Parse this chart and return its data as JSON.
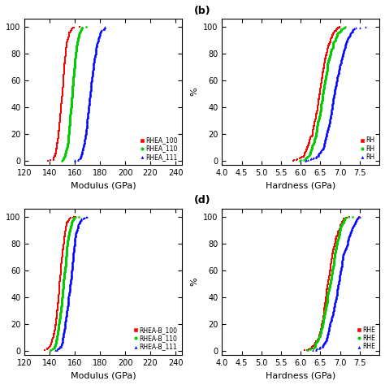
{
  "fig_width": 4.74,
  "fig_height": 4.74,
  "dpi": 100,
  "background_color": "#ffffff",
  "panels": {
    "a": {
      "label": "",
      "xlabel": "Modulus (GPa)",
      "ylabel": "",
      "xlim": [
        120,
        245
      ],
      "ylim": [
        -3,
        106
      ],
      "xticks": [
        120,
        140,
        160,
        180,
        200,
        220,
        240
      ],
      "yticks": [
        0,
        20,
        40,
        60,
        80,
        100
      ],
      "series": [
        {
          "name": "RHEA_100",
          "color": "#ff0000",
          "marker": "s",
          "mean": 150,
          "std": 3.5,
          "n": 300
        },
        {
          "name": "RHEA_110",
          "color": "#00cc00",
          "marker": "o",
          "mean": 158,
          "std": 3.5,
          "n": 300
        },
        {
          "name": "RHEA_111",
          "color": "#0000ff",
          "marker": "^",
          "mean": 172,
          "std": 4.5,
          "n": 300
        }
      ]
    },
    "b": {
      "label": "(b)",
      "xlabel": "Hardness (GPa)",
      "ylabel": "%",
      "xlim": [
        4.0,
        8.0
      ],
      "ylim": [
        -3,
        106
      ],
      "xticks": [
        4.0,
        4.5,
        5.0,
        5.5,
        6.0,
        6.5,
        7.0,
        7.5
      ],
      "yticks": [
        0,
        20,
        40,
        60,
        80,
        100
      ],
      "series": [
        {
          "name": "RH",
          "color": "#ff0000",
          "marker": "s",
          "mean": 6.45,
          "std": 0.22,
          "n": 300
        },
        {
          "name": "RH",
          "color": "#00cc00",
          "marker": "o",
          "mean": 6.55,
          "std": 0.22,
          "n": 300
        },
        {
          "name": "RH",
          "color": "#0000ff",
          "marker": "^",
          "mean": 6.85,
          "std": 0.25,
          "n": 300
        }
      ]
    },
    "c": {
      "label": "",
      "xlabel": "Modulus (GPa)",
      "ylabel": "",
      "xlim": [
        120,
        245
      ],
      "ylim": [
        -3,
        106
      ],
      "xticks": [
        120,
        140,
        160,
        180,
        200,
        220,
        240
      ],
      "yticks": [
        0,
        20,
        40,
        60,
        80,
        100
      ],
      "series": [
        {
          "name": "RHEA-B_100",
          "color": "#ff0000",
          "marker": "s",
          "mean": 148,
          "std": 4,
          "n": 300
        },
        {
          "name": "RHEA-B_110",
          "color": "#00cc00",
          "marker": "o",
          "mean": 151,
          "std": 4,
          "n": 300
        },
        {
          "name": "RHEA-B_111",
          "color": "#0000ff",
          "marker": "^",
          "mean": 156,
          "std": 4.5,
          "n": 300
        }
      ]
    },
    "d": {
      "label": "(d)",
      "xlabel": "Hardness (GPa)",
      "ylabel": "%",
      "xlim": [
        4.0,
        8.0
      ],
      "ylim": [
        -3,
        106
      ],
      "xticks": [
        4.0,
        4.5,
        5.0,
        5.5,
        6.0,
        6.5,
        7.0,
        7.5
      ],
      "yticks": [
        0,
        20,
        40,
        60,
        80,
        100
      ],
      "series": [
        {
          "name": "RHE",
          "color": "#ff0000",
          "marker": "s",
          "mean": 6.7,
          "std": 0.2,
          "n": 300
        },
        {
          "name": "RHE",
          "color": "#00cc00",
          "marker": "o",
          "mean": 6.75,
          "std": 0.2,
          "n": 300
        },
        {
          "name": "RHE",
          "color": "#0000ff",
          "marker": "^",
          "mean": 6.95,
          "std": 0.22,
          "n": 300
        }
      ]
    }
  }
}
